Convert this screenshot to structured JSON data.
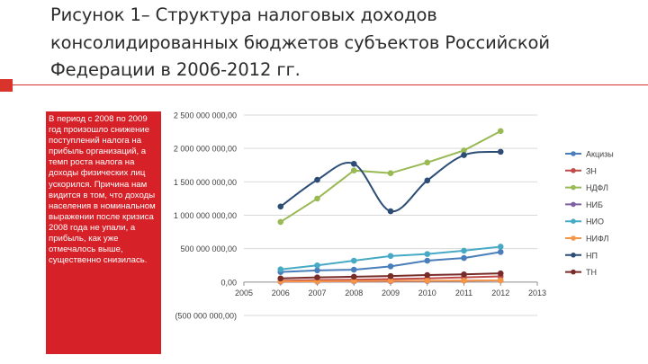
{
  "slide": {
    "title": "Рисунок 1– Структура налоговых доходов консолидированных бюджетов субъектов Российской Федерации в 2006-2012 гг.",
    "note": "В период с 2008 по 2009 год произошло снижение поступлений налога на прибыль организаций, а темп роста налога на доходы физических лиц ускорился. Причина нам видится в том, что доходы населения в номинальном выражении после кризиса 2008 года не упали, а прибыль, как уже отмечалось выше, существенно снизилась.",
    "colors": {
      "accent": "#d9342b",
      "panel": "#d72128"
    }
  },
  "chart_data": {
    "type": "line",
    "x": [
      2006,
      2007,
      2008,
      2009,
      2010,
      2011,
      2012
    ],
    "xlim": [
      2005,
      2013
    ],
    "xticks": [
      2005,
      2006,
      2007,
      2008,
      2009,
      2010,
      2011,
      2012,
      2013
    ],
    "ylim": [
      -500000000,
      2500000000
    ],
    "yticks": [
      -500000000,
      0,
      500000000,
      1000000000,
      1500000000,
      2000000000,
      2500000000
    ],
    "ytick_labels": [
      "(500 000 000,00)",
      "0,00",
      "500 000 000,00",
      "1 000 000 000,00",
      "1 500 000 000,00",
      "2 000 000 000,00",
      "2 500 000 000,00"
    ],
    "grid": true,
    "legend_position": "right",
    "series": [
      {
        "name": "Акцизы",
        "color": "#4a7ebb",
        "values": [
          150000000,
          175000000,
          185000000,
          235000000,
          320000000,
          360000000,
          450000000
        ]
      },
      {
        "name": "ЗН",
        "color": "#be4b48",
        "values": [
          20000000,
          30000000,
          35000000,
          45000000,
          55000000,
          70000000,
          85000000
        ]
      },
      {
        "name": "НДФЛ",
        "color": "#98b954",
        "values": [
          900000000,
          1250000000,
          1670000000,
          1630000000,
          1790000000,
          1970000000,
          2260000000
        ]
      },
      {
        "name": "НИБ",
        "color": "#7d60a0",
        "values": [
          5000000,
          8000000,
          10000000,
          12000000,
          15000000,
          20000000,
          25000000
        ]
      },
      {
        "name": "НИО",
        "color": "#46aac5",
        "values": [
          190000000,
          250000000,
          320000000,
          390000000,
          420000000,
          470000000,
          530000000
        ]
      },
      {
        "name": "НИФЛ",
        "color": "#f79646",
        "values": [
          10000000,
          12000000,
          15000000,
          18000000,
          20000000,
          22000000,
          24000000
        ]
      },
      {
        "name": "НП",
        "color": "#2c4d75",
        "values": [
          1130000000,
          1530000000,
          1770000000,
          1060000000,
          1520000000,
          1900000000,
          1950000000
        ]
      },
      {
        "name": "ТН",
        "color": "#772c2a",
        "values": [
          55000000,
          70000000,
          80000000,
          90000000,
          105000000,
          115000000,
          130000000
        ]
      }
    ]
  }
}
